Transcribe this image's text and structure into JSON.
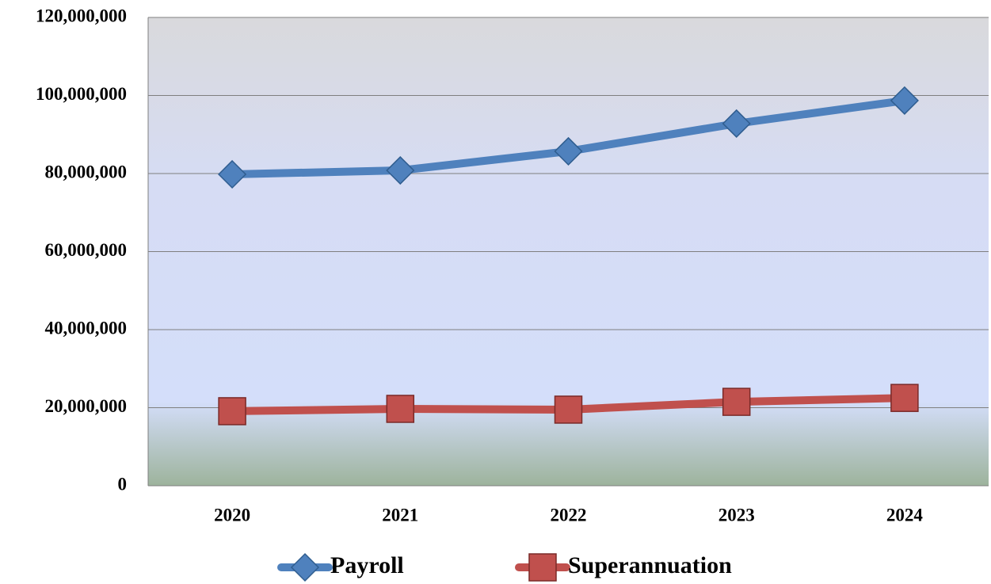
{
  "chart_data": {
    "type": "line",
    "categories": [
      "2020",
      "2021",
      "2022",
      "2023",
      "2024"
    ],
    "series": [
      {
        "name": "Payroll",
        "color": "#4f81bd",
        "marker": "diamond",
        "values": [
          79800000,
          80800000,
          85700000,
          92800000,
          98700000
        ]
      },
      {
        "name": "Superannuation",
        "color": "#c0504d",
        "marker": "square",
        "values": [
          19100000,
          19700000,
          19500000,
          21500000,
          22500000
        ]
      }
    ],
    "ylim": [
      0,
      120000000
    ],
    "yticks": [
      {
        "value": 0,
        "label": "0"
      },
      {
        "value": 20000000,
        "label": "20,000,000"
      },
      {
        "value": 40000000,
        "label": "40,000,000"
      },
      {
        "value": 60000000,
        "label": "60,000,000"
      },
      {
        "value": 80000000,
        "label": "80,000,000"
      },
      {
        "value": 100000000,
        "label": "100,000,000"
      },
      {
        "value": 120000000,
        "label": "120,000,000"
      }
    ],
    "grid": true,
    "legend": "bottom"
  }
}
